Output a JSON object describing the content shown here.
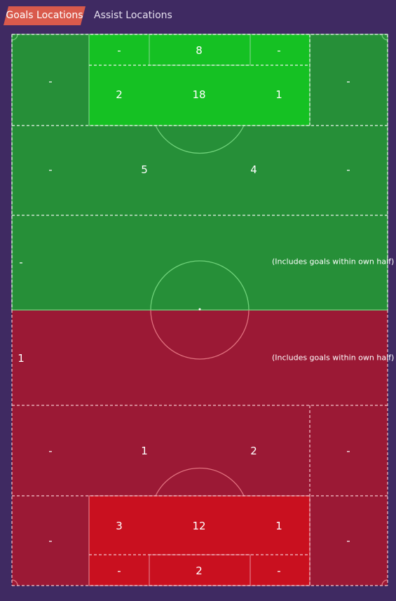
{
  "tabs": [
    {
      "label": "Goals Locations",
      "active": true
    },
    {
      "label": "Assist Locations",
      "active": false
    }
  ],
  "colors": {
    "background": "#3f2a62",
    "tab_active": "#d95a4c",
    "attack_half": "#268f38",
    "attack_box": "#15c123",
    "defence_half": "#9b1935",
    "defence_box": "#c9101f"
  },
  "attack": {
    "six_yard": {
      "left": "-",
      "center": "8",
      "right": "-"
    },
    "box": {
      "left": "2",
      "center": "18",
      "right": "1"
    },
    "box_flank": {
      "left": "-",
      "right": "-"
    },
    "edge": {
      "far_left": "-",
      "left": "5",
      "right": "4",
      "far_right": "-"
    },
    "half": {
      "value": "-",
      "note": "(Includes goals within own half)"
    }
  },
  "defence": {
    "half": {
      "value": "1",
      "note": "(Includes goals within own half)"
    },
    "edge": {
      "far_left": "-",
      "left": "1",
      "right": "2",
      "far_right": "-"
    },
    "box_flank": {
      "left": "-",
      "right": "-"
    },
    "box": {
      "left": "3",
      "center": "12",
      "right": "1"
    },
    "six_yard": {
      "left": "-",
      "center": "2",
      "right": "-"
    }
  }
}
